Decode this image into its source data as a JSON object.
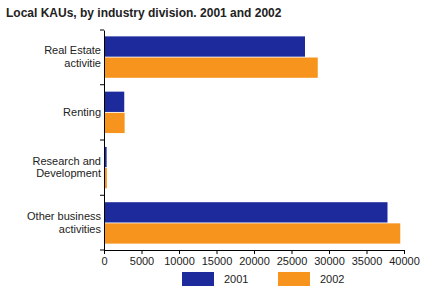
{
  "chart_data": {
    "type": "bar",
    "orientation": "horizontal",
    "title": "Local KAUs, by industry division. 2001 and 2002",
    "categories": [
      "Real Estate\nactivitie",
      "Renting",
      "Research and\nDevelopment",
      "Other business\nactivities"
    ],
    "series": [
      {
        "name": "2001",
        "color": "#1c2a9c",
        "values": [
          26800,
          2700,
          350,
          37800
        ]
      },
      {
        "name": "2002",
        "color": "#f7941d",
        "values": [
          28500,
          2750,
          380,
          39500
        ]
      }
    ],
    "xlim": [
      0,
      40000
    ],
    "xticks": [
      0,
      5000,
      10000,
      15000,
      20000,
      25000,
      30000,
      35000,
      40000
    ],
    "grid": false,
    "legend": "bottom"
  }
}
